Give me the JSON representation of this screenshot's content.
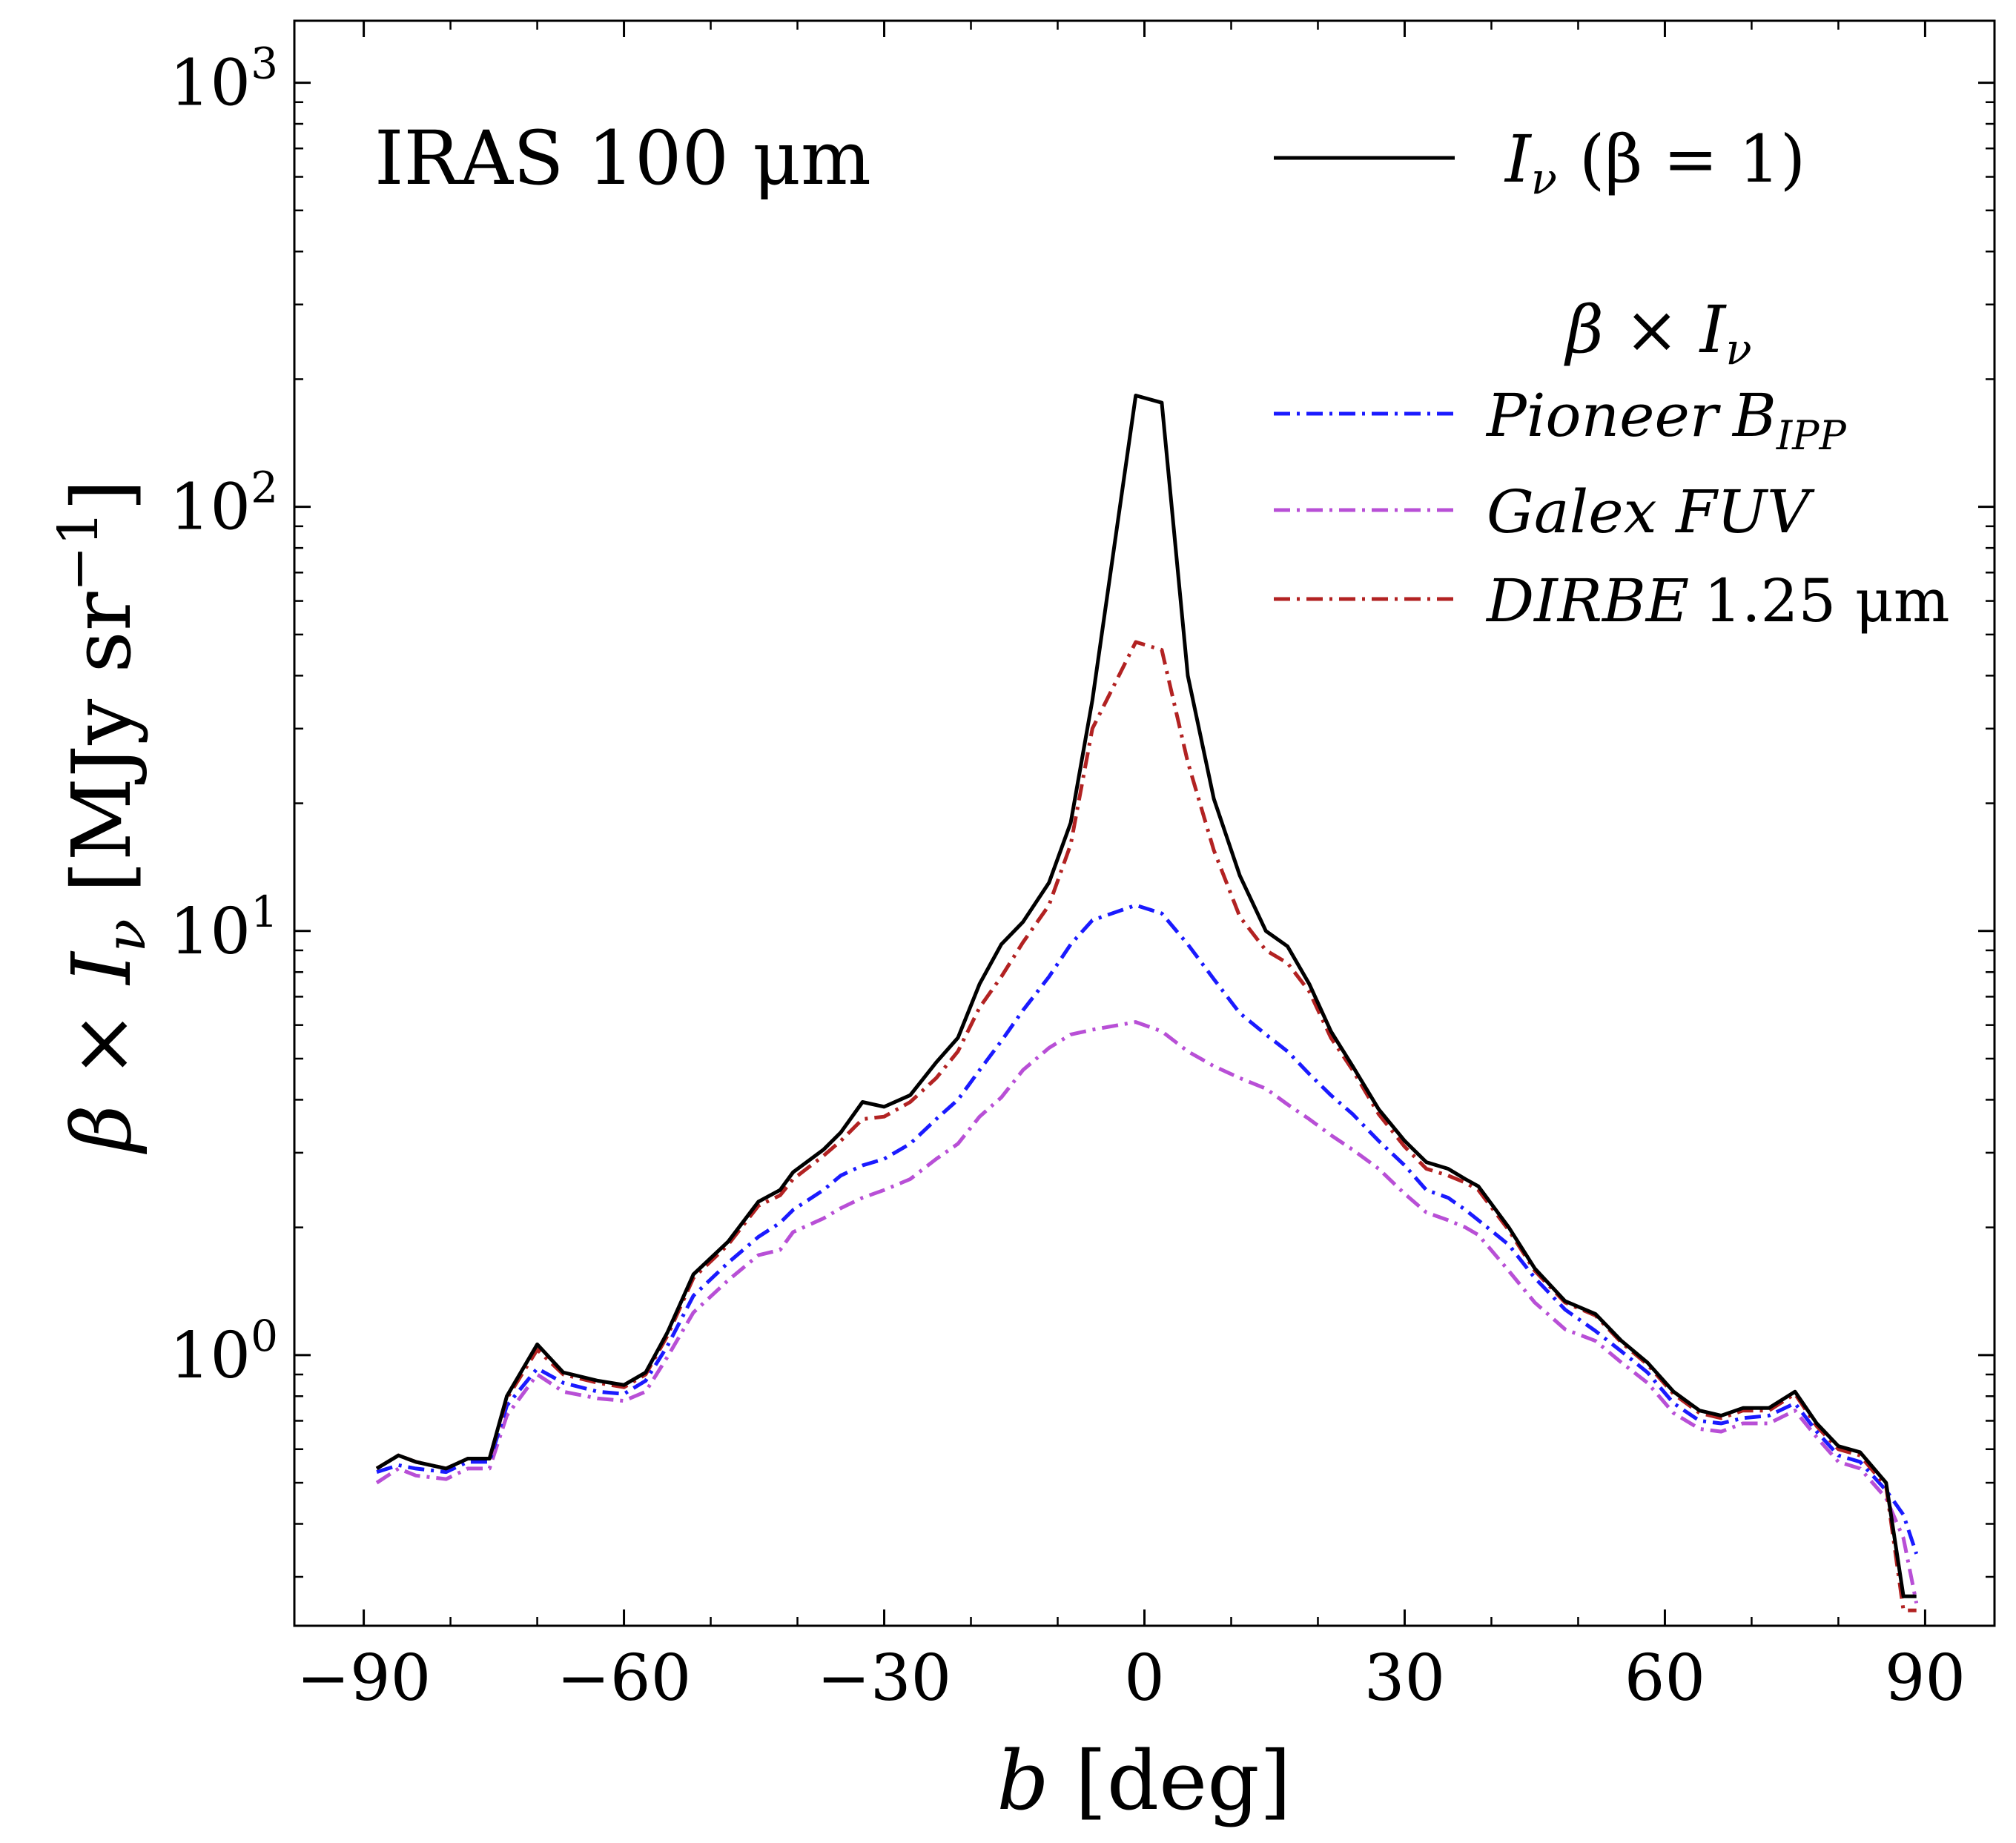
{
  "chart_data": {
    "type": "line",
    "title": "IRAS 100 μm",
    "xlabel": {
      "b": "b",
      "rest": " [deg]"
    },
    "ylabel": {
      "beta": "β",
      "times": " × ",
      "I": "I",
      "sub": "ν",
      "units": " [MJy sr",
      "exp": "−1",
      "close": "]"
    },
    "x_range": [
      -98,
      98
    ],
    "y_range": [
      0.23,
      1400
    ],
    "y_scale": "log",
    "x_ticks": [
      -90,
      -60,
      -30,
      0,
      30,
      60,
      90
    ],
    "x_tick_labels": [
      "−90",
      "−60",
      "−30",
      "0",
      "30",
      "60",
      "90"
    ],
    "y_ticks": [
      {
        "value": 1,
        "base": "10",
        "exp": "0"
      },
      {
        "value": 10,
        "base": "10",
        "exp": "1"
      },
      {
        "value": 100,
        "base": "10",
        "exp": "2"
      },
      {
        "value": 1000,
        "base": "10",
        "exp": "3"
      }
    ],
    "grid": false,
    "legend_position": "top-right",
    "legend": {
      "reference": {
        "I": "I",
        "sub": "ν",
        "beta": "(β = 1)"
      },
      "group_heading": {
        "beta": "β",
        "times": " × ",
        "I": "I",
        "sub": "ν"
      },
      "entries": [
        {
          "name": "Pioneer",
          "sub": "IPP",
          "prefix": "B"
        },
        {
          "name": "Galex FUV"
        },
        {
          "name": "DIRBE",
          "suffix": "1.25 μm"
        }
      ]
    },
    "x": [
      -88.5,
      -86,
      -84,
      -80.5,
      -78,
      -75.5,
      -73.5,
      -70,
      -67,
      -63,
      -60,
      -57.5,
      -55,
      -52,
      -48,
      -44.5,
      -42,
      -40.5,
      -37,
      -35,
      -32.5,
      -30,
      -27,
      -24,
      -21.5,
      -19,
      -16.5,
      -14,
      -11,
      -8.5,
      -6,
      -1,
      2,
      5,
      8,
      11,
      14,
      16.5,
      19,
      21.5,
      24,
      27,
      30,
      32.5,
      35,
      37,
      38.5,
      42,
      45,
      48.5,
      52,
      55,
      58,
      61,
      64,
      66.5,
      69,
      72,
      75,
      77.5,
      80,
      82.5,
      85.5,
      87.5,
      89
    ],
    "series": [
      {
        "key": "reference",
        "color": "#000000",
        "dash": "none",
        "values": [
          0.54,
          0.58,
          0.56,
          0.54,
          0.57,
          0.57,
          0.8,
          1.06,
          0.91,
          0.87,
          0.85,
          0.91,
          1.13,
          1.55,
          1.85,
          2.3,
          2.45,
          2.7,
          3.05,
          3.35,
          3.95,
          3.85,
          4.1,
          4.9,
          5.6,
          7.5,
          9.3,
          10.5,
          13.0,
          18.0,
          35.0,
          183.0,
          176.0,
          40.0,
          20.5,
          13.5,
          10.0,
          9.2,
          7.5,
          5.8,
          4.8,
          3.8,
          3.2,
          2.85,
          2.75,
          2.6,
          2.5,
          2.0,
          1.6,
          1.34,
          1.25,
          1.08,
          0.96,
          0.82,
          0.74,
          0.72,
          0.75,
          0.75,
          0.82,
          0.69,
          0.61,
          0.59,
          0.5,
          0.27,
          0.27
        ]
      },
      {
        "key": "pioneer",
        "color": "#1a1aff",
        "dash": "22 9 4 9",
        "values": [
          0.53,
          0.55,
          0.54,
          0.53,
          0.56,
          0.56,
          0.76,
          0.93,
          0.86,
          0.82,
          0.81,
          0.87,
          1.05,
          1.38,
          1.65,
          1.9,
          2.05,
          2.2,
          2.45,
          2.65,
          2.8,
          2.9,
          3.15,
          3.6,
          4.0,
          4.7,
          5.5,
          6.5,
          7.8,
          9.3,
          10.6,
          11.5,
          11.0,
          9.3,
          7.7,
          6.4,
          5.7,
          5.2,
          4.6,
          4.1,
          3.7,
          3.2,
          2.8,
          2.45,
          2.35,
          2.2,
          2.08,
          1.82,
          1.52,
          1.28,
          1.14,
          1.02,
          0.91,
          0.77,
          0.7,
          0.69,
          0.71,
          0.72,
          0.77,
          0.66,
          0.58,
          0.56,
          0.48,
          0.42,
          0.34
        ]
      },
      {
        "key": "galex",
        "color": "#b84fd6",
        "dash": "22 9 4 9",
        "values": [
          0.5,
          0.54,
          0.52,
          0.51,
          0.54,
          0.54,
          0.72,
          0.9,
          0.82,
          0.79,
          0.78,
          0.82,
          0.99,
          1.26,
          1.5,
          1.72,
          1.77,
          1.95,
          2.1,
          2.22,
          2.35,
          2.45,
          2.6,
          2.9,
          3.15,
          3.65,
          4.05,
          4.7,
          5.3,
          5.7,
          5.85,
          6.1,
          5.8,
          5.2,
          4.8,
          4.5,
          4.25,
          3.9,
          3.6,
          3.3,
          3.05,
          2.75,
          2.4,
          2.17,
          2.08,
          2.0,
          1.92,
          1.58,
          1.33,
          1.15,
          1.08,
          0.96,
          0.86,
          0.73,
          0.67,
          0.66,
          0.69,
          0.69,
          0.74,
          0.64,
          0.56,
          0.54,
          0.46,
          0.37,
          0.26
        ]
      },
      {
        "key": "dirbe",
        "color": "#b22222",
        "dash": "22 9 4 9",
        "values": [
          0.54,
          0.58,
          0.56,
          0.54,
          0.57,
          0.57,
          0.79,
          1.03,
          0.9,
          0.86,
          0.84,
          0.9,
          1.11,
          1.52,
          1.82,
          2.25,
          2.38,
          2.6,
          2.95,
          3.2,
          3.6,
          3.65,
          3.95,
          4.5,
          5.2,
          6.6,
          7.8,
          9.4,
          11.5,
          16.0,
          30.0,
          48.0,
          46.0,
          25.0,
          15.5,
          10.8,
          9.0,
          8.4,
          7.2,
          5.6,
          4.7,
          3.7,
          3.1,
          2.75,
          2.65,
          2.55,
          2.45,
          1.97,
          1.58,
          1.33,
          1.24,
          1.07,
          0.95,
          0.81,
          0.73,
          0.71,
          0.74,
          0.74,
          0.81,
          0.68,
          0.6,
          0.58,
          0.49,
          0.25,
          0.25
        ]
      }
    ]
  }
}
